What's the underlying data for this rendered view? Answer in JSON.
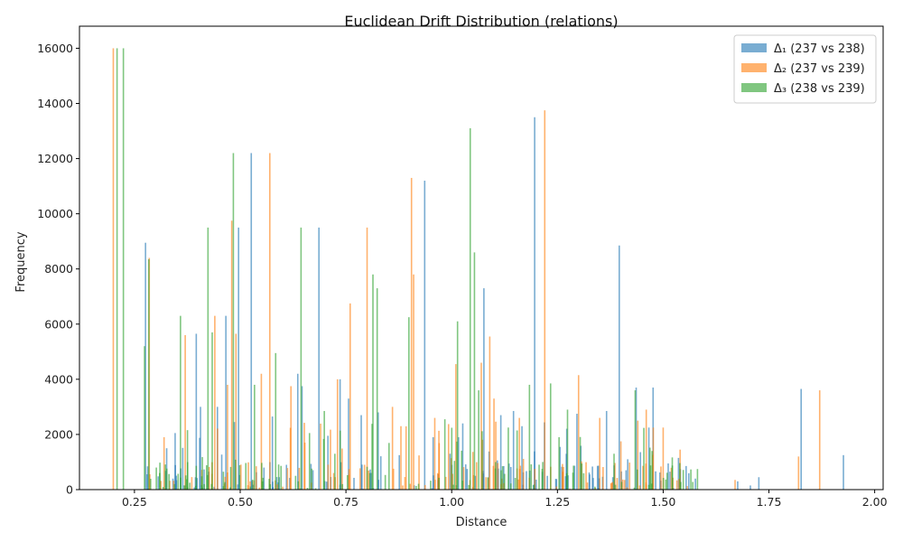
{
  "chart_data": {
    "type": "bar",
    "title": "Euclidean Drift Distribution (relations)",
    "xlabel": "Distance",
    "ylabel": "Frequency",
    "xlim": [
      0.12,
      2.02
    ],
    "ylim": [
      0,
      16800
    ],
    "xticks": [
      0.25,
      0.5,
      0.75,
      1.0,
      1.25,
      1.5,
      1.75,
      2.0
    ],
    "xtick_labels": [
      "0.25",
      "0.50",
      "0.75",
      "1.00",
      "1.25",
      "1.50",
      "1.75",
      "2.00"
    ],
    "yticks": [
      0,
      2000,
      4000,
      6000,
      8000,
      10000,
      12000,
      14000,
      16000
    ],
    "ytick_labels": [
      "0",
      "2000",
      "4000",
      "6000",
      "8000",
      "10000",
      "12000",
      "14000",
      "16000"
    ],
    "grid": false,
    "legend_position": "top-right",
    "bar_opacity": 0.6,
    "series": [
      {
        "name": "Δ₁ (237 vs 238)",
        "color": "#1f77b4",
        "x": [
          0.28,
          0.31,
          0.33,
          0.35,
          0.4,
          0.41,
          0.45,
          0.47,
          0.49,
          0.5,
          0.53,
          0.56,
          0.58,
          0.64,
          0.65,
          0.69,
          0.74,
          0.76,
          0.79,
          0.83,
          0.88,
          0.94,
          0.96,
          1.0,
          1.02,
          1.03,
          1.06,
          1.08,
          1.12,
          1.15,
          1.17,
          1.2,
          1.23,
          1.26,
          1.3,
          1.33,
          1.37,
          1.4,
          1.42,
          1.44,
          1.47,
          1.48,
          1.52,
          1.54,
          1.58,
          1.68,
          1.71,
          1.73,
          1.83,
          1.93
        ],
        "values": [
          8950,
          480,
          1500,
          2050,
          5650,
          3000,
          3000,
          6300,
          2450,
          9500,
          12200,
          800,
          2650,
          4200,
          3750,
          9500,
          4000,
          3300,
          2700,
          2800,
          1250,
          11200,
          1900,
          1300,
          1900,
          2400,
          500,
          7300,
          2700,
          2850,
          2300,
          13500,
          500,
          1550,
          2750,
          550,
          2850,
          8850,
          1100,
          3700,
          2250,
          3700,
          650,
          1150,
          400,
          300,
          150,
          450,
          3650,
          1250
        ]
      },
      {
        "name": "Δ₂ (237 vs 239)",
        "color": "#ff7f0e",
        "x": [
          0.2,
          0.285,
          0.32,
          0.37,
          0.44,
          0.47,
          0.48,
          0.49,
          0.55,
          0.57,
          0.62,
          0.73,
          0.76,
          0.8,
          0.86,
          0.88,
          0.905,
          0.91,
          0.96,
          1.01,
          1.07,
          1.09,
          1.1,
          1.16,
          1.22,
          1.3,
          1.35,
          1.4,
          1.44,
          1.46,
          1.5,
          1.54,
          1.67,
          1.82,
          1.87
        ],
        "values": [
          16000,
          8400,
          1900,
          5600,
          6300,
          3800,
          9750,
          5650,
          4200,
          12200,
          3750,
          4000,
          6750,
          9500,
          3000,
          2300,
          11300,
          7800,
          2600,
          4550,
          4600,
          5550,
          3300,
          2600,
          13750,
          4150,
          2600,
          1750,
          2500,
          2900,
          2250,
          1450,
          350,
          1200,
          3600
        ]
      },
      {
        "name": "Δ₃ (238 vs 239)",
        "color": "#2ca02c",
        "x": [
          0.205,
          0.22,
          0.27,
          0.28,
          0.355,
          0.42,
          0.43,
          0.48,
          0.53,
          0.58,
          0.64,
          0.66,
          0.695,
          0.72,
          0.81,
          0.82,
          0.895,
          0.98,
          1.01,
          1.04,
          1.05,
          1.06,
          1.1,
          1.13,
          1.18,
          1.23,
          1.25,
          1.27,
          1.38,
          1.43,
          1.47
        ],
        "values": [
          16000,
          16000,
          5200,
          8350,
          6300,
          9500,
          5700,
          12200,
          3800,
          4950,
          9500,
          2050,
          2850,
          1300,
          7800,
          7300,
          6250,
          2550,
          6100,
          13100,
          8600,
          3600,
          1000,
          2250,
          3800,
          3850,
          1900,
          2900,
          1300,
          3600,
          1400
        ]
      }
    ],
    "noise_bar_count": 340
  }
}
